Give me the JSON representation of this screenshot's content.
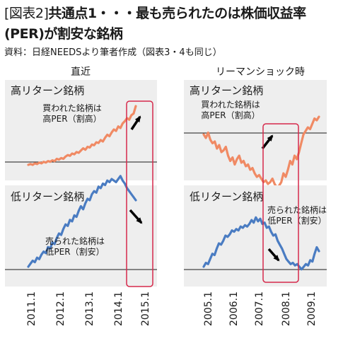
{
  "header": {
    "tag": "[図表2]",
    "title_line1": "共通点1・・・最も売られたのは株価収益率",
    "title_line2": "(PER)が割安な銘柄",
    "source": "資料：日経NEEDSより筆者作成（図表3・4も同じ）"
  },
  "chart_data": [
    {
      "type": "line",
      "title": "直近",
      "x_tick_labels": [
        "2011.1",
        "2012.1",
        "2013.1",
        "2014.1",
        "2015.1"
      ],
      "panels": [
        {
          "name": "高リターン銘柄",
          "annotation": [
            "買われた銘柄は",
            "高PER（割高）"
          ],
          "color": "#f08a64",
          "values": [
            0,
            1,
            0,
            2,
            1,
            3,
            2,
            4,
            3,
            5,
            4,
            6,
            5,
            8,
            7,
            9,
            8,
            11,
            13,
            12,
            15,
            14,
            17,
            16,
            19,
            22,
            20,
            24,
            23,
            27,
            26,
            30,
            29,
            33,
            31,
            36,
            40,
            38,
            43,
            47,
            45,
            51,
            49,
            55,
            58,
            62,
            60,
            66,
            68,
            78
          ]
        },
        {
          "name": "低リターン銘柄",
          "annotation": [
            "売られた銘柄は",
            "低PER（割安）"
          ],
          "color": "#4a7cc2",
          "values": [
            0,
            2,
            4,
            3,
            6,
            5,
            8,
            10,
            9,
            13,
            12,
            16,
            15,
            19,
            22,
            21,
            25,
            28,
            27,
            31,
            30,
            34,
            33,
            37,
            40,
            38,
            42,
            45,
            44,
            48,
            50,
            49,
            53,
            52,
            55,
            54,
            57,
            56,
            58,
            57,
            56,
            58,
            60,
            57,
            55,
            52,
            50,
            48,
            46,
            44
          ]
        }
      ]
    },
    {
      "type": "line",
      "title": "リーマンショック時",
      "x_tick_labels": [
        "2005.1",
        "2006.1",
        "2007.1",
        "2008.1",
        "2009.1"
      ],
      "panels": [
        {
          "name": "高リターン銘柄",
          "annotation": [
            "買われた銘柄は",
            "高PER（割高）"
          ],
          "color": "#f08a64",
          "values": [
            0,
            -2,
            1,
            -3,
            -5,
            -4,
            -8,
            -6,
            -10,
            -9,
            -7,
            -12,
            -15,
            -13,
            -17,
            -14,
            -12,
            -16,
            -15,
            -18,
            -17,
            -20,
            -19,
            -22,
            -24,
            -23,
            -25,
            -27,
            -26,
            -28,
            -27,
            -25,
            -28,
            -30,
            -29,
            -27,
            -22,
            -24,
            -20,
            -15,
            -17,
            -12,
            -14,
            -10,
            -5,
            0,
            2,
            4,
            3,
            6,
            9,
            8,
            10
          ]
        },
        {
          "name": "低リターン銘柄",
          "annotation": [
            "売られた銘柄は",
            "低PER（割安）"
          ],
          "color": "#4a7cc2",
          "values": [
            0,
            3,
            2,
            6,
            10,
            9,
            14,
            18,
            17,
            20,
            24,
            23,
            25,
            28,
            27,
            29,
            28,
            31,
            30,
            32,
            31,
            33,
            36,
            34,
            38,
            35,
            37,
            33,
            34,
            30,
            31,
            27,
            24,
            25,
            20,
            17,
            14,
            10,
            6,
            4,
            2,
            3,
            1,
            2,
            0,
            -2,
            0,
            2,
            1,
            5,
            4,
            10,
            15,
            12
          ]
        }
      ]
    }
  ]
}
